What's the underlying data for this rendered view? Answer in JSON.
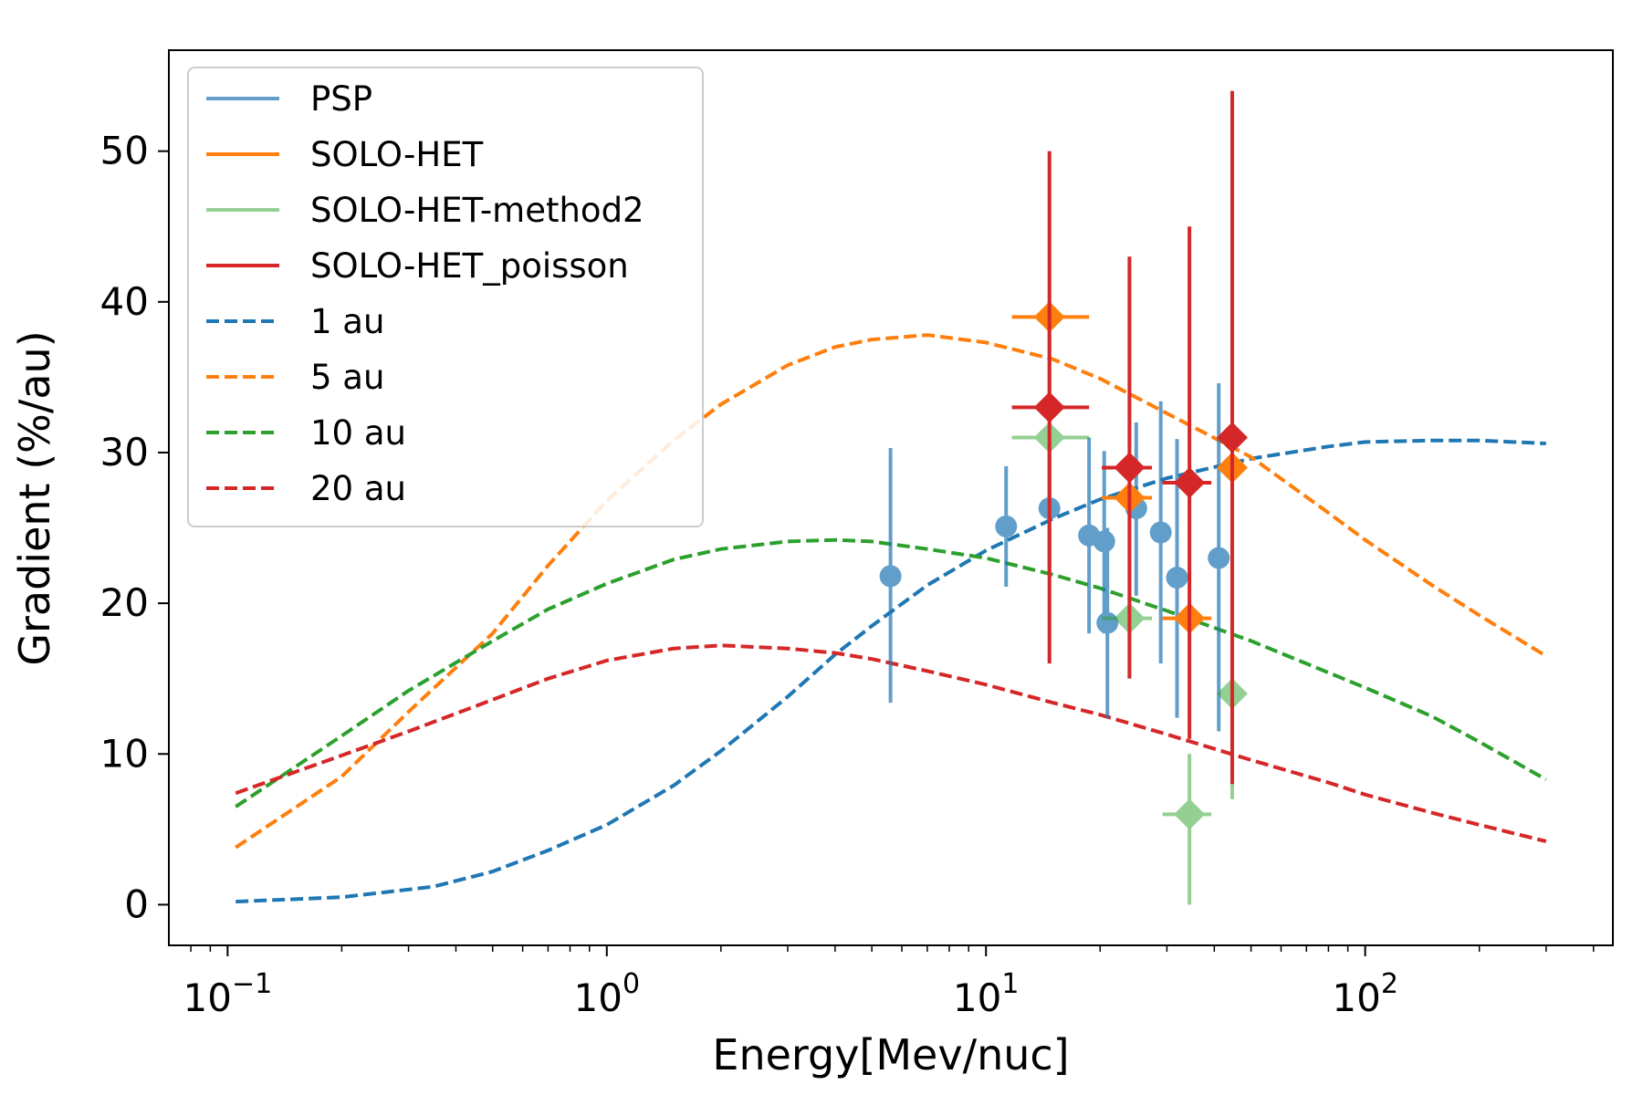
{
  "chart_data": {
    "type": "line",
    "xlabel": "Energy[Mev/nuc]",
    "ylabel": "Gradient (%/au)",
    "xscale": "log",
    "xlim": [
      0.07,
      450
    ],
    "ylim": [
      -2.7,
      56.7
    ],
    "x_ticks": [
      {
        "value": 0.1,
        "base": "10",
        "exp": "−1"
      },
      {
        "value": 1,
        "base": "10",
        "exp": "0"
      },
      {
        "value": 10,
        "base": "10",
        "exp": "1"
      },
      {
        "value": 100,
        "base": "10",
        "exp": "2"
      }
    ],
    "y_ticks": [
      0,
      10,
      20,
      30,
      40,
      50
    ],
    "grid": false,
    "legend_position": "top-left",
    "legend": [
      {
        "label": "PSP",
        "color": "#1f77b4",
        "style": "solid",
        "alpha": 0.7
      },
      {
        "label": "SOLO-HET",
        "color": "#ff7f0e",
        "style": "solid",
        "alpha": 1
      },
      {
        "label": "SOLO-HET-method2",
        "color": "#2ca02c",
        "style": "solid",
        "alpha": 0.5
      },
      {
        "label": "SOLO-HET_poisson",
        "color": "#d62728",
        "style": "solid",
        "alpha": 1
      },
      {
        "label": "1 au",
        "color": "#1f77b4",
        "style": "dashed",
        "alpha": 1
      },
      {
        "label": "5 au",
        "color": "#ff7f0e",
        "style": "dashed",
        "alpha": 1
      },
      {
        "label": "10 au",
        "color": "#2ca02c",
        "style": "dashed",
        "alpha": 1
      },
      {
        "label": "20 au",
        "color": "#d62728",
        "style": "dashed",
        "alpha": 1
      }
    ],
    "lines": [
      {
        "name": "1 au",
        "color": "#1f77b4",
        "x": [
          0.105,
          0.2,
          0.35,
          0.5,
          0.7,
          1.0,
          1.5,
          2,
          3,
          4,
          5,
          7,
          10,
          15,
          20,
          30,
          50,
          80,
          100,
          150,
          200,
          300
        ],
        "y": [
          0.2,
          0.5,
          1.2,
          2.2,
          3.6,
          5.3,
          7.9,
          10.2,
          13.8,
          16.6,
          18.5,
          21.2,
          23.5,
          25.6,
          26.9,
          28.3,
          29.6,
          30.4,
          30.7,
          30.8,
          30.8,
          30.6
        ]
      },
      {
        "name": "5 au",
        "color": "#ff7f0e",
        "x": [
          0.105,
          0.2,
          0.3,
          0.5,
          0.7,
          1.0,
          1.5,
          2,
          3,
          4,
          5,
          7,
          10,
          15,
          20,
          30,
          50,
          80,
          100,
          150,
          200,
          300
        ],
        "y": [
          3.8,
          8.5,
          12.8,
          18.0,
          22.5,
          26.8,
          30.8,
          33.2,
          35.8,
          37.0,
          37.5,
          37.8,
          37.3,
          36.2,
          34.9,
          32.6,
          29.7,
          26.0,
          24.2,
          21.2,
          19.2,
          16.5
        ]
      },
      {
        "name": "10 au",
        "color": "#2ca02c",
        "x": [
          0.105,
          0.2,
          0.3,
          0.5,
          0.7,
          1.0,
          1.5,
          2,
          3,
          4,
          5,
          7,
          10,
          15,
          20,
          30,
          50,
          80,
          100,
          150,
          200,
          300
        ],
        "y": [
          6.5,
          11.2,
          14.2,
          17.5,
          19.6,
          21.3,
          22.9,
          23.6,
          24.1,
          24.2,
          24.1,
          23.6,
          23.0,
          21.9,
          21.0,
          19.5,
          17.5,
          15.4,
          14.4,
          12.5,
          10.8,
          8.3
        ]
      },
      {
        "name": "20 au",
        "color": "#d62728",
        "x": [
          0.105,
          0.2,
          0.3,
          0.5,
          0.7,
          1.0,
          1.5,
          2,
          3,
          4,
          5,
          7,
          10,
          15,
          20,
          30,
          50,
          80,
          100,
          150,
          200,
          300
        ],
        "y": [
          7.4,
          9.9,
          11.5,
          13.6,
          15.0,
          16.2,
          17.0,
          17.2,
          17.0,
          16.7,
          16.3,
          15.5,
          14.6,
          13.4,
          12.6,
          11.3,
          9.6,
          8.1,
          7.3,
          6.1,
          5.3,
          4.2
        ]
      }
    ],
    "points": [
      {
        "name": "PSP",
        "color": "#1f77b4",
        "alpha": 0.7,
        "marker": "circle",
        "data": [
          {
            "x": 5.6,
            "y": 21.8,
            "ylo": 13.4,
            "yhi": 30.3
          },
          {
            "x": 11.3,
            "y": 25.1,
            "ylo": 21.1,
            "yhi": 29.1
          },
          {
            "x": 14.7,
            "y": 26.3,
            "ylo": 22.0,
            "yhi": 30.7
          },
          {
            "x": 18.7,
            "y": 24.5,
            "ylo": 18.0,
            "yhi": 31.0
          },
          {
            "x": 20.5,
            "y": 24.1,
            "ylo": 18.0,
            "yhi": 30.1
          },
          {
            "x": 20.9,
            "y": 18.7,
            "ylo": 12.4,
            "yhi": 25.0
          },
          {
            "x": 24.9,
            "y": 26.3,
            "ylo": 20.5,
            "yhi": 32.0
          },
          {
            "x": 28.9,
            "y": 24.7,
            "ylo": 16.0,
            "yhi": 33.4
          },
          {
            "x": 31.9,
            "y": 21.7,
            "ylo": 12.4,
            "yhi": 30.9
          },
          {
            "x": 41.1,
            "y": 23.0,
            "ylo": 11.5,
            "yhi": 34.6
          }
        ]
      },
      {
        "name": "SOLO-HET",
        "color": "#ff7f0e",
        "alpha": 1,
        "marker": "diamond",
        "data": [
          {
            "x": 14.7,
            "y": 39.0,
            "xlo": 11.7,
            "xhi": 18.7
          },
          {
            "x": 23.9,
            "y": 27.0,
            "xlo": 20.2,
            "xhi": 27.4
          },
          {
            "x": 34.4,
            "y": 19.0,
            "xlo": 29.2,
            "xhi": 39.3
          },
          {
            "x": 44.6,
            "y": 29.0,
            "xlo": 42.8,
            "xhi": 45.8
          }
        ]
      },
      {
        "name": "SOLO-HET-method2",
        "color": "#2ca02c",
        "alpha": 0.5,
        "marker": "diamond",
        "data": [
          {
            "x": 14.7,
            "y": 31.0,
            "xlo": 11.7,
            "xhi": 18.7,
            "ylo": 22.0,
            "yhi": 40.0
          },
          {
            "x": 23.9,
            "y": 19.0,
            "xlo": 20.2,
            "xhi": 27.4,
            "ylo": 15.0,
            "yhi": 23.0
          },
          {
            "x": 34.4,
            "y": 6.0,
            "xlo": 29.2,
            "xhi": 39.3,
            "ylo": 0.0,
            "yhi": 10.0
          },
          {
            "x": 44.6,
            "y": 14.0,
            "xlo": 42.8,
            "xhi": 45.8,
            "ylo": 7.0,
            "yhi": 21.0
          }
        ]
      },
      {
        "name": "SOLO-HET_poisson",
        "color": "#d62728",
        "alpha": 1,
        "marker": "diamond",
        "data": [
          {
            "x": 14.7,
            "y": 33.0,
            "xlo": 11.7,
            "xhi": 18.7,
            "ylo": 16.0,
            "yhi": 50.0
          },
          {
            "x": 23.9,
            "y": 29.0,
            "xlo": 20.2,
            "xhi": 27.4,
            "ylo": 15.0,
            "yhi": 43.0
          },
          {
            "x": 34.4,
            "y": 28.0,
            "xlo": 29.2,
            "xhi": 39.3,
            "ylo": 11.0,
            "yhi": 45.0
          },
          {
            "x": 44.6,
            "y": 31.0,
            "xlo": 42.8,
            "xhi": 45.8,
            "ylo": 8.0,
            "yhi": 54.0
          }
        ]
      }
    ]
  }
}
